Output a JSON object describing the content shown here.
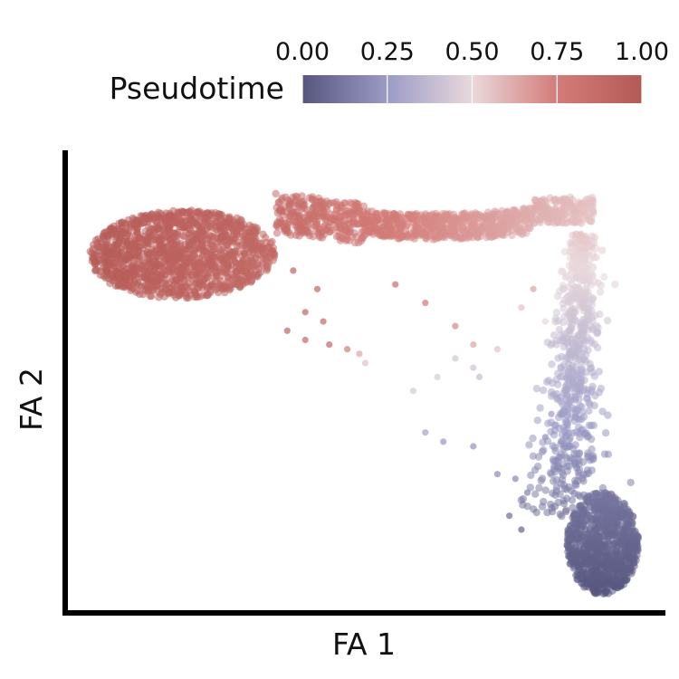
{
  "chart_data": {
    "type": "scatter",
    "title": "",
    "xlabel": "FA 1",
    "ylabel": "FA 2",
    "xlim": [
      0,
      1
    ],
    "ylim": [
      0,
      1
    ],
    "grid": false,
    "show_tick_labels": false,
    "color_by": "Pseudotime",
    "colorbar": {
      "label": "Pseudotime",
      "placement": "top",
      "range": [
        0,
        1
      ],
      "ticks": [
        0.0,
        0.25,
        0.5,
        0.75,
        1.0
      ],
      "tick_labels": [
        "0.00",
        "0.25",
        "0.50",
        "0.75",
        "1.00"
      ],
      "colors": [
        "#56567f",
        "#9b9bc6",
        "#e9d9dc",
        "#d37c78",
        "#b45a56"
      ]
    },
    "series": [
      {
        "point_structure": [
          {
            "segment": "left-cluster",
            "x_range": [
              0.04,
              0.36
            ],
            "y_range": [
              0.67,
              0.88
            ],
            "pseudotime_range": [
              0.88,
              0.99
            ]
          },
          {
            "segment": "top-branch",
            "x_range": [
              0.35,
              0.88
            ],
            "y_range": [
              0.8,
              0.92
            ],
            "pseudotime_range": [
              0.55,
              0.86
            ]
          },
          {
            "segment": "right-descending-branch",
            "x_range": [
              0.78,
              0.9
            ],
            "y_range": [
              0.2,
              0.82
            ],
            "pseudotime_range": [
              0.1,
              0.55
            ]
          },
          {
            "segment": "bottom-right-cluster",
            "x_range": [
              0.83,
              0.96
            ],
            "y_range": [
              0.04,
              0.31
            ],
            "pseudotime_range": [
              0.0,
              0.14
            ]
          }
        ],
        "sparse_points": [
          {
            "x": 0.38,
            "y": 0.74,
            "pseudotime": 0.86
          },
          {
            "x": 0.42,
            "y": 0.7,
            "pseudotime": 0.84
          },
          {
            "x": 0.4,
            "y": 0.65,
            "pseudotime": 0.84
          },
          {
            "x": 0.37,
            "y": 0.61,
            "pseudotime": 0.85
          },
          {
            "x": 0.43,
            "y": 0.63,
            "pseudotime": 0.83
          },
          {
            "x": 0.4,
            "y": 0.59,
            "pseudotime": 0.83
          },
          {
            "x": 0.44,
            "y": 0.58,
            "pseudotime": 0.82
          },
          {
            "x": 0.47,
            "y": 0.57,
            "pseudotime": 0.72
          },
          {
            "x": 0.49,
            "y": 0.56,
            "pseudotime": 0.62
          },
          {
            "x": 0.5,
            "y": 0.54,
            "pseudotime": 0.55
          },
          {
            "x": 0.55,
            "y": 0.71,
            "pseudotime": 0.8
          },
          {
            "x": 0.6,
            "y": 0.67,
            "pseudotime": 0.74
          },
          {
            "x": 0.65,
            "y": 0.62,
            "pseudotime": 0.7
          },
          {
            "x": 0.68,
            "y": 0.58,
            "pseudotime": 0.62
          },
          {
            "x": 0.72,
            "y": 0.57,
            "pseudotime": 0.55
          },
          {
            "x": 0.58,
            "y": 0.48,
            "pseudotime": 0.45
          },
          {
            "x": 0.62,
            "y": 0.51,
            "pseudotime": 0.45
          },
          {
            "x": 0.65,
            "y": 0.55,
            "pseudotime": 0.44
          },
          {
            "x": 0.68,
            "y": 0.53,
            "pseudotime": 0.42
          },
          {
            "x": 0.69,
            "y": 0.51,
            "pseudotime": 0.4
          },
          {
            "x": 0.6,
            "y": 0.39,
            "pseudotime": 0.3
          },
          {
            "x": 0.63,
            "y": 0.37,
            "pseudotime": 0.26
          },
          {
            "x": 0.68,
            "y": 0.36,
            "pseudotime": 0.24
          },
          {
            "x": 0.72,
            "y": 0.3,
            "pseudotime": 0.22
          },
          {
            "x": 0.75,
            "y": 0.29,
            "pseudotime": 0.2
          },
          {
            "x": 0.77,
            "y": 0.26,
            "pseudotime": 0.18
          },
          {
            "x": 0.74,
            "y": 0.21,
            "pseudotime": 0.12
          },
          {
            "x": 0.76,
            "y": 0.18,
            "pseudotime": 0.08
          },
          {
            "x": 0.78,
            "y": 0.7,
            "pseudotime": 0.62
          },
          {
            "x": 0.76,
            "y": 0.66,
            "pseudotime": 0.55
          },
          {
            "x": 0.8,
            "y": 0.63,
            "pseudotime": 0.5
          },
          {
            "x": 0.81,
            "y": 0.43,
            "pseudotime": 0.28
          },
          {
            "x": 0.8,
            "y": 0.38,
            "pseudotime": 0.22
          }
        ]
      }
    ]
  }
}
